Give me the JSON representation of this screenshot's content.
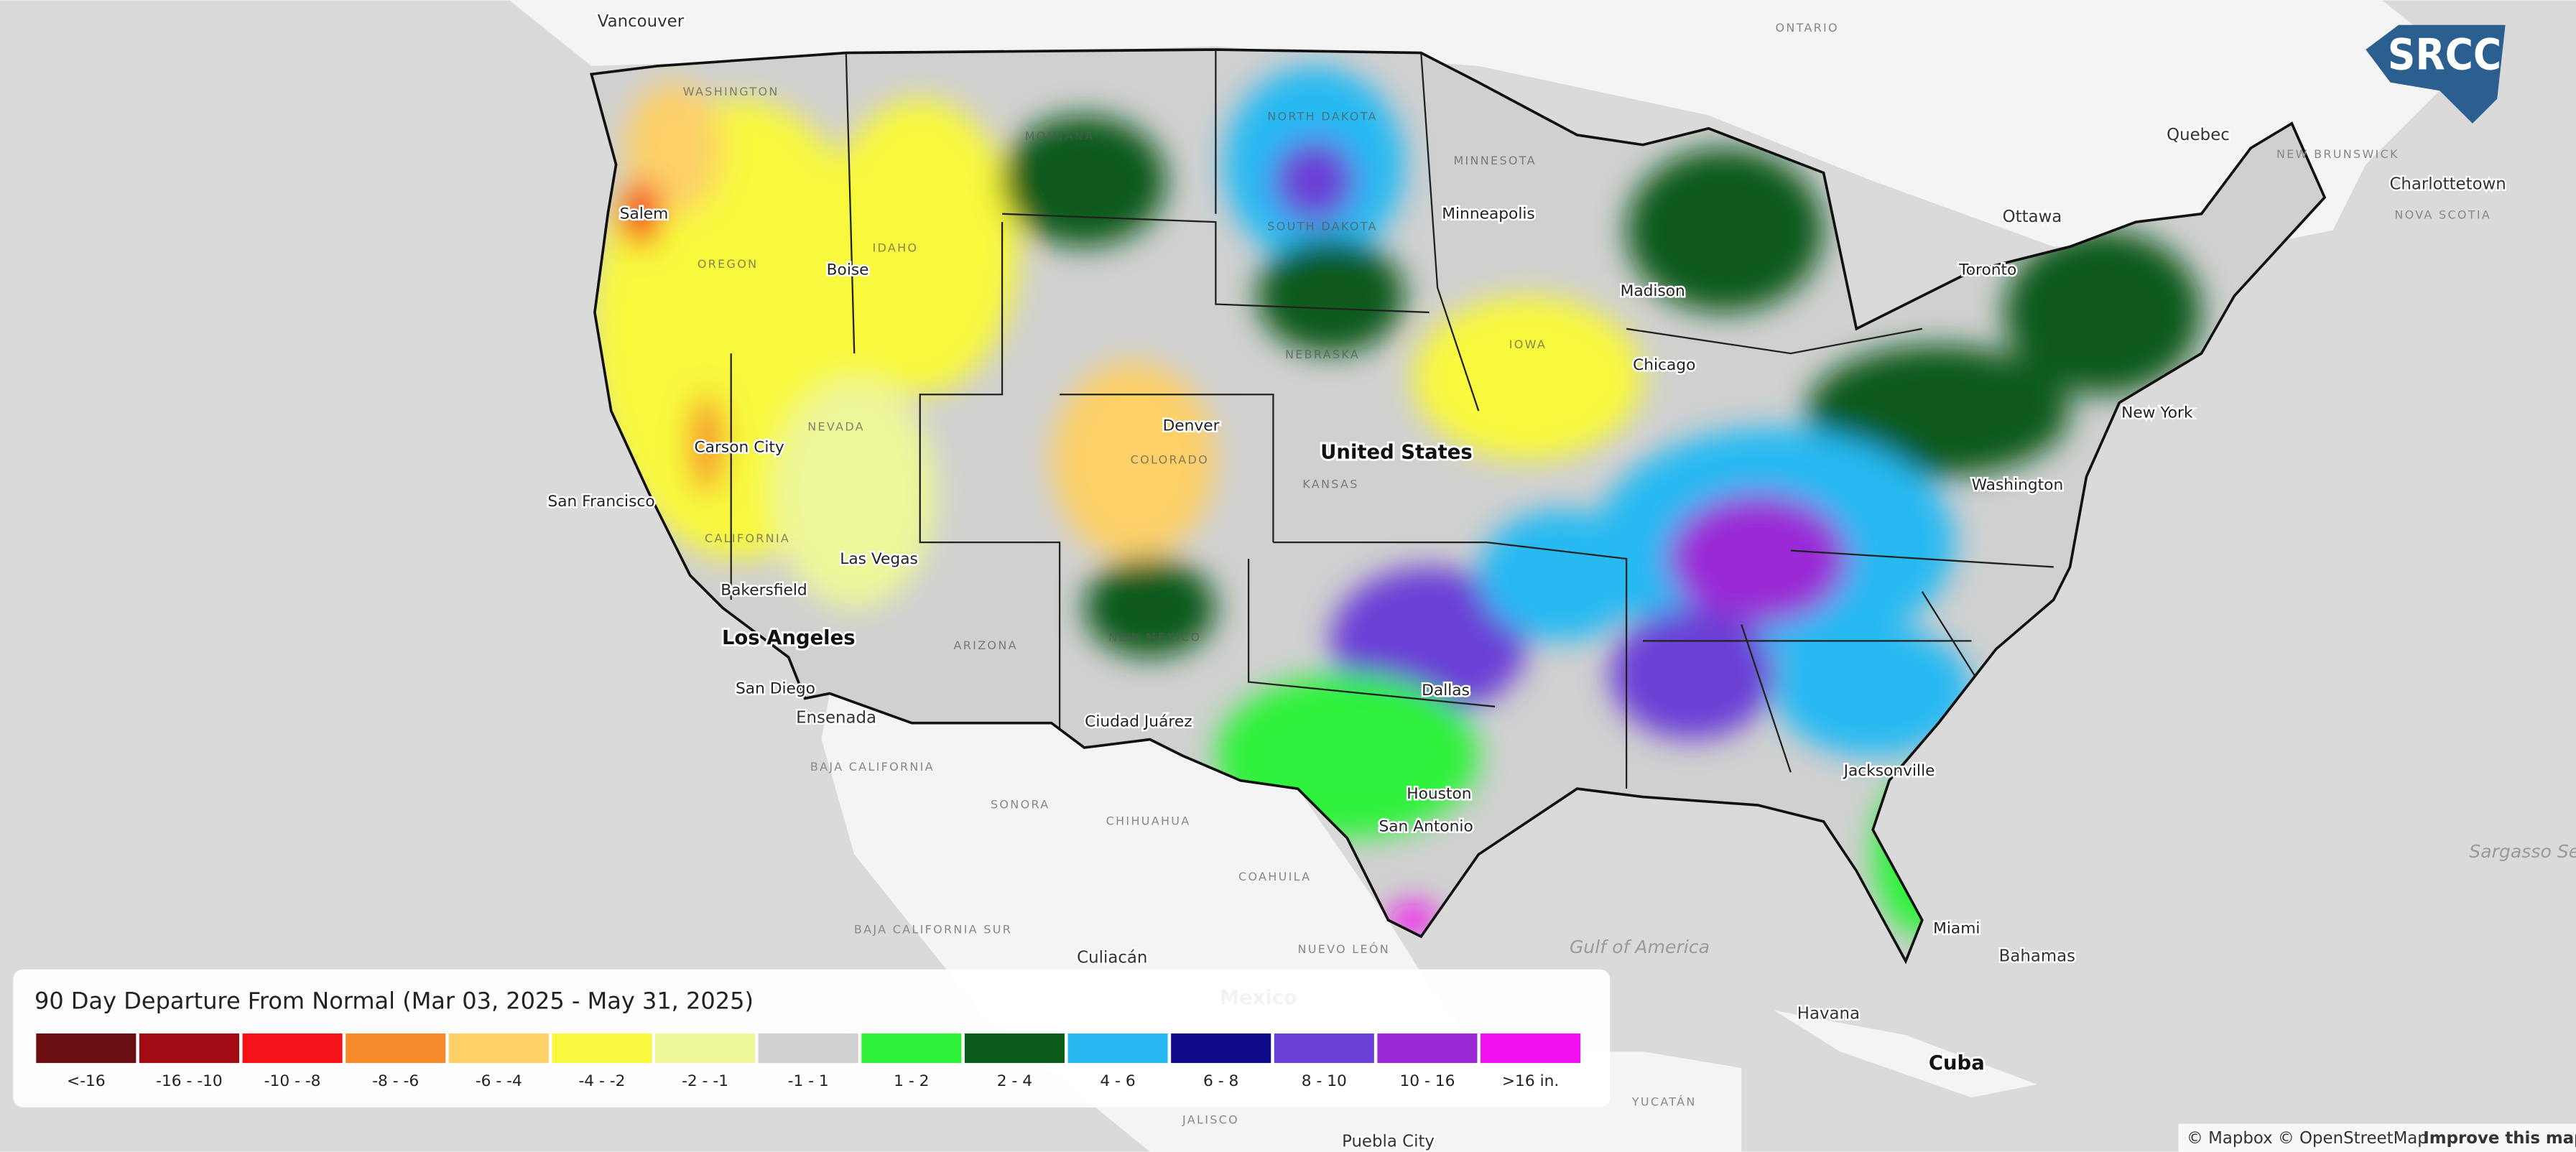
{
  "map": {
    "places": [
      "Vancouver",
      "ONTARIO",
      "Quebec",
      "NEW BRUNSWICK",
      "Charlottetown",
      "NOVA SCOTIA",
      "Ottawa",
      "Toronto",
      "New York",
      "Minneapolis",
      "Madison",
      "Chicago",
      "Boise",
      "Salem",
      "San Francisco",
      "Carson City",
      "Las Vegas",
      "Bakersfield",
      "Los Angeles",
      "San Diego",
      "Ensenada",
      "BAJA CALIFORNIA",
      "SONORA",
      "CHIHUAHUA",
      "COAHUILA",
      "BAJA CALIFORNIA SUR",
      "Culiacán",
      "NUEVO LEÓN",
      "Mexico",
      "JALISCO",
      "Puebla City",
      "YUCATÁN",
      "Havana",
      "Cuba",
      "Bahamas",
      "Miami",
      "Gulf of America",
      "Sargasso Sea",
      "Houston",
      "San Antonio",
      "Dallas",
      "Jacksonville",
      "Denver",
      "United States",
      "Ciudad Juárez",
      "Washington"
    ],
    "states": [
      "WASHINGTON",
      "MONTANA",
      "OREGON",
      "IDAHO",
      "NEVADA",
      "CALIFORNIA",
      "ARIZONA",
      "NEW MEXICO",
      "COLORADO",
      "NEBRASKA",
      "KANSAS",
      "SOUTH DAKOTA",
      "NORTH DAKOTA",
      "MINNESOTA",
      "IOWA"
    ]
  },
  "logo": "SRCC",
  "legend": {
    "title": "90 Day Departure From Normal (Mar 03, 2025 - May 31, 2025)",
    "items": [
      {
        "label": "<-16",
        "color": "#6b0e12"
      },
      {
        "label": "-16 - -10",
        "color": "#a30b14"
      },
      {
        "label": "-10 - -8",
        "color": "#f5121b"
      },
      {
        "label": "-8 - -6",
        "color": "#f58a2a"
      },
      {
        "label": "-6 - -4",
        "color": "#fdd068"
      },
      {
        "label": "-4 - -2",
        "color": "#f8f83e"
      },
      {
        "label": "-2 - -1",
        "color": "#eef79a"
      },
      {
        "label": "-1 - 1",
        "color": "#d0d0d0"
      },
      {
        "label": "1 - 2",
        "color": "#2ef23a"
      },
      {
        "label": "2 - 4",
        "color": "#0b5a1a"
      },
      {
        "label": "4 - 6",
        "color": "#27b9f2"
      },
      {
        "label": "6 - 8",
        "color": "#0e0a8a"
      },
      {
        "label": "8 - 10",
        "color": "#6a3fd6"
      },
      {
        "label": "10 - 16",
        "color": "#9a29d6"
      },
      {
        "label": ">16 in.",
        "color": "#f20ff0"
      }
    ]
  },
  "attribution": {
    "text": "© Mapbox © OpenStreetMap",
    "link": "Improve this map"
  }
}
